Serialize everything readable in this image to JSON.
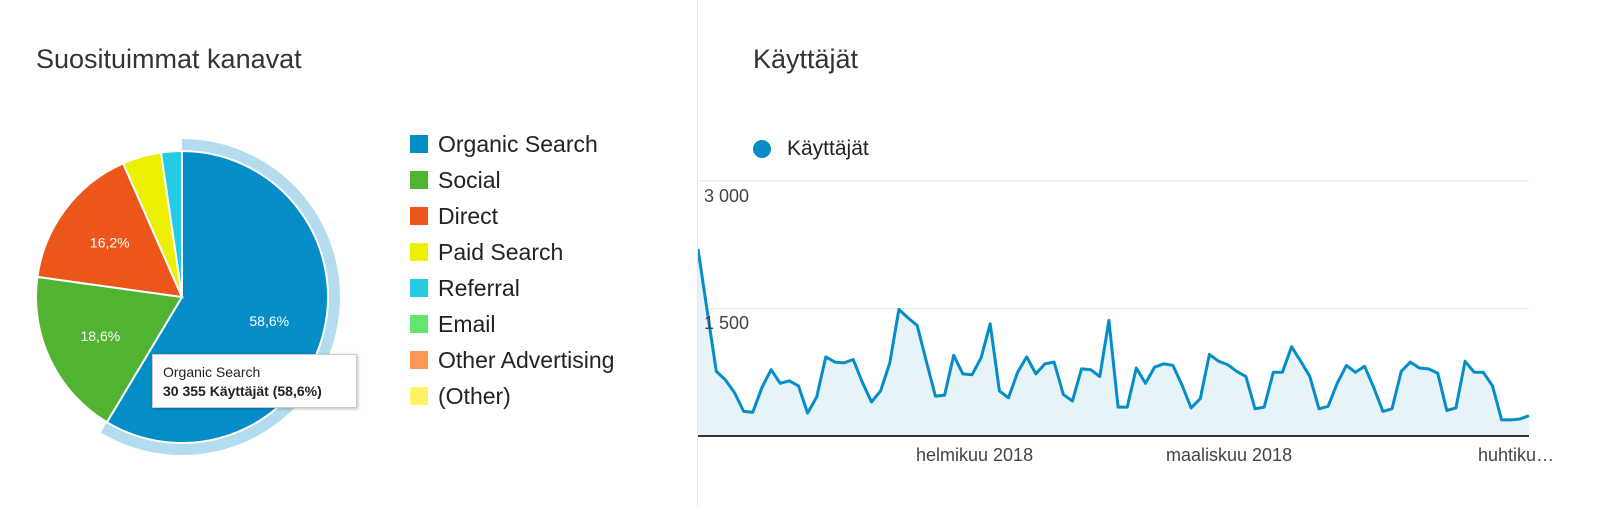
{
  "left": {
    "title": "Suosituimmat kanavat",
    "tooltip": {
      "label": "Organic Search",
      "value": "30 355 Käyttäjät (58,6%)"
    }
  },
  "right": {
    "title": "Käyttäjät"
  },
  "chart_data": [
    {
      "type": "pie",
      "title": "Suosituimmat kanavat",
      "legend_position": "right",
      "highlighted": "Organic Search",
      "slices": [
        {
          "name": "Organic Search",
          "value": 58.6,
          "label": "58,6%",
          "color": "#058dc7"
        },
        {
          "name": "Social",
          "value": 18.6,
          "label": "18,6%",
          "color": "#50b432"
        },
        {
          "name": "Direct",
          "value": 16.2,
          "label": "16,2%",
          "color": "#ed561b"
        },
        {
          "name": "Paid Search",
          "value": 4.3,
          "label": "",
          "color": "#edef00"
        },
        {
          "name": "Referral",
          "value": 2.3,
          "label": "",
          "color": "#24cbe5"
        },
        {
          "name": "Email",
          "value": 0,
          "label": "",
          "color": "#64e572"
        },
        {
          "name": "Other Advertising",
          "value": 0,
          "label": "",
          "color": "#ff9655"
        },
        {
          "name": "(Other)",
          "value": 0,
          "label": "",
          "color": "#fff263"
        }
      ]
    },
    {
      "type": "area",
      "title": "Käyttäjät",
      "legend_position": "top-left",
      "series": [
        {
          "name": "Käyttäjät",
          "color": "#058dc7",
          "values": [
            2200,
            1480,
            760,
            660,
            510,
            290,
            280,
            570,
            780,
            620,
            650,
            590,
            270,
            460,
            930,
            870,
            860,
            900,
            630,
            400,
            530,
            860,
            1490,
            1390,
            1300,
            880,
            470,
            480,
            950,
            730,
            720,
            920,
            1320,
            530,
            450,
            750,
            930,
            730,
            850,
            870,
            490,
            410,
            790,
            780,
            700,
            1360,
            340,
            340,
            800,
            620,
            810,
            850,
            830,
            600,
            330,
            440,
            960,
            880,
            840,
            760,
            700,
            320,
            340,
            750,
            750,
            1050,
            880,
            700,
            320,
            350,
            620,
            830,
            750,
            820,
            570,
            290,
            320,
            760,
            870,
            800,
            790,
            740,
            300,
            330,
            880,
            750,
            750,
            590,
            190,
            190,
            200,
            240
          ]
        }
      ],
      "y_ticks": [
        "1 500",
        "3 000"
      ],
      "ylim": [
        0,
        3000
      ],
      "x_ticks": [
        "helmikuu 2018",
        "maaliskuu 2018",
        "huhtiku…"
      ],
      "grid": true
    }
  ]
}
